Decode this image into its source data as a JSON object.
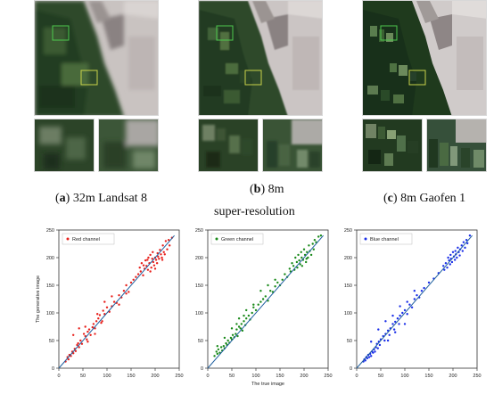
{
  "figure": {
    "panels": [
      {
        "letter": "a",
        "label": "32m Landsat 8"
      },
      {
        "letter": "b",
        "label": "8m",
        "label2": "super-resolution"
      },
      {
        "letter": "c",
        "label": "8m Gaofen 1"
      }
    ]
  },
  "chart_data": [
    {
      "type": "scatter",
      "title": "",
      "xlabel": "",
      "ylabel": "The generative image",
      "xlim": [
        0,
        250
      ],
      "ylim": [
        0,
        250
      ],
      "xticks": [
        0,
        50,
        100,
        150,
        200,
        250
      ],
      "yticks": [
        0,
        50,
        100,
        150,
        200,
        250
      ],
      "legend": {
        "label": "Red channel",
        "position": "top-left"
      },
      "color": "#e8201c",
      "reference_line": {
        "x": [
          0,
          240
        ],
        "y": [
          0,
          240
        ]
      },
      "series": [
        {
          "name": "Red channel",
          "points": [
            [
              14,
              12
            ],
            [
              18,
              20
            ],
            [
              20,
              16
            ],
            [
              22,
              24
            ],
            [
              25,
              22
            ],
            [
              28,
              30
            ],
            [
              30,
              27
            ],
            [
              33,
              35
            ],
            [
              35,
              31
            ],
            [
              38,
              42
            ],
            [
              40,
              45
            ],
            [
              42,
              38
            ],
            [
              45,
              50
            ],
            [
              48,
              44
            ],
            [
              52,
              62
            ],
            [
              55,
              58
            ],
            [
              58,
              52
            ],
            [
              60,
              66
            ],
            [
              63,
              70
            ],
            [
              66,
              60
            ],
            [
              70,
              74
            ],
            [
              72,
              80
            ],
            [
              75,
              72
            ],
            [
              78,
              85
            ],
            [
              82,
              90
            ],
            [
              85,
              96
            ],
            [
              88,
              82
            ],
            [
              92,
              104
            ],
            [
              95,
              98
            ],
            [
              100,
              110
            ],
            [
              105,
              102
            ],
            [
              110,
              112
            ],
            [
              115,
              120
            ],
            [
              120,
              118
            ],
            [
              125,
              132
            ],
            [
              130,
              128
            ],
            [
              135,
              140
            ],
            [
              140,
              150
            ],
            [
              145,
              138
            ],
            [
              150,
              155
            ],
            [
              155,
              160
            ],
            [
              160,
              165
            ],
            [
              165,
              170
            ],
            [
              170,
              175
            ],
            [
              172,
              190
            ],
            [
              175,
              168
            ],
            [
              178,
              180
            ],
            [
              180,
              195
            ],
            [
              182,
              185
            ],
            [
              185,
              178
            ],
            [
              186,
              200
            ],
            [
              188,
              190
            ],
            [
              190,
              205
            ],
            [
              192,
              182
            ],
            [
              194,
              198
            ],
            [
              195,
              210
            ],
            [
              196,
              192
            ],
            [
              198,
              186
            ],
            [
              200,
              200
            ],
            [
              202,
              196
            ],
            [
              204,
              190
            ],
            [
              205,
              208
            ],
            [
              206,
              202
            ],
            [
              208,
              198
            ],
            [
              210,
              214
            ],
            [
              212,
              206
            ],
            [
              214,
              200
            ],
            [
              215,
              196
            ],
            [
              216,
              222
            ],
            [
              218,
              210
            ],
            [
              220,
              206
            ],
            [
              222,
              230
            ],
            [
              225,
              215
            ],
            [
              228,
              232
            ],
            [
              230,
              222
            ],
            [
              235,
              236
            ],
            [
              200,
              180
            ],
            [
              190,
              175
            ],
            [
              184,
              196
            ],
            [
              176,
              186
            ],
            [
              168,
              182
            ],
            [
              30,
              60
            ],
            [
              42,
              72
            ],
            [
              55,
              75
            ],
            [
              80,
              98
            ],
            [
              95,
              120
            ],
            [
              110,
              130
            ],
            [
              125,
              115
            ],
            [
              140,
              135
            ],
            [
              60,
              48
            ],
            [
              75,
              62
            ],
            [
              90,
              85
            ]
          ]
        }
      ]
    },
    {
      "type": "scatter",
      "title": "",
      "xlabel": "The true image",
      "ylabel": "",
      "xlim": [
        0,
        250
      ],
      "ylim": [
        0,
        250
      ],
      "xticks": [
        0,
        50,
        100,
        150,
        200,
        250
      ],
      "yticks": [
        0,
        50,
        100,
        150,
        200,
        250
      ],
      "legend": {
        "label": "Green channel",
        "position": "top-left"
      },
      "color": "#1a8a1a",
      "reference_line": {
        "x": [
          0,
          240
        ],
        "y": [
          0,
          240
        ]
      },
      "series": [
        {
          "name": "Green channel",
          "points": [
            [
              14,
              22
            ],
            [
              18,
              30
            ],
            [
              20,
              26
            ],
            [
              22,
              34
            ],
            [
              25,
              28
            ],
            [
              28,
              38
            ],
            [
              30,
              32
            ],
            [
              33,
              40
            ],
            [
              35,
              36
            ],
            [
              38,
              45
            ],
            [
              40,
              42
            ],
            [
              42,
              50
            ],
            [
              45,
              46
            ],
            [
              48,
              55
            ],
            [
              50,
              52
            ],
            [
              52,
              60
            ],
            [
              55,
              56
            ],
            [
              58,
              62
            ],
            [
              60,
              70
            ],
            [
              62,
              58
            ],
            [
              65,
              75
            ],
            [
              68,
              72
            ],
            [
              70,
              80
            ],
            [
              72,
              68
            ],
            [
              75,
              85
            ],
            [
              78,
              78
            ],
            [
              80,
              90
            ],
            [
              85,
              95
            ],
            [
              88,
              88
            ],
            [
              92,
              100
            ],
            [
              95,
              110
            ],
            [
              100,
              105
            ],
            [
              105,
              115
            ],
            [
              110,
              120
            ],
            [
              115,
              125
            ],
            [
              120,
              130
            ],
            [
              125,
              122
            ],
            [
              130,
              140
            ],
            [
              135,
              138
            ],
            [
              140,
              148
            ],
            [
              145,
              155
            ],
            [
              150,
              150
            ],
            [
              155,
              160
            ],
            [
              160,
              170
            ],
            [
              165,
              165
            ],
            [
              170,
              180
            ],
            [
              172,
              175
            ],
            [
              175,
              190
            ],
            [
              178,
              185
            ],
            [
              180,
              178
            ],
            [
              182,
              200
            ],
            [
              185,
              192
            ],
            [
              186,
              182
            ],
            [
              188,
              205
            ],
            [
              190,
              195
            ],
            [
              192,
              188
            ],
            [
              194,
              210
            ],
            [
              195,
              200
            ],
            [
              196,
              185
            ],
            [
              198,
              196
            ],
            [
              200,
              215
            ],
            [
              202,
              205
            ],
            [
              204,
              192
            ],
            [
              205,
              198
            ],
            [
              206,
              210
            ],
            [
              208,
              200
            ],
            [
              210,
              222
            ],
            [
              212,
              212
            ],
            [
              215,
              205
            ],
            [
              218,
              225
            ],
            [
              220,
              215
            ],
            [
              222,
              232
            ],
            [
              225,
              228
            ],
            [
              230,
              238
            ],
            [
              235,
              240
            ],
            [
              20,
              40
            ],
            [
              35,
              55
            ],
            [
              50,
              72
            ],
            [
              65,
              90
            ],
            [
              80,
              105
            ],
            [
              95,
              115
            ],
            [
              110,
              140
            ],
            [
              125,
              150
            ],
            [
              140,
              160
            ],
            [
              60,
              80
            ],
            [
              75,
              95
            ]
          ]
        }
      ]
    },
    {
      "type": "scatter",
      "title": "",
      "xlabel": "",
      "ylabel": "",
      "xlim": [
        0,
        250
      ],
      "ylim": [
        0,
        250
      ],
      "xticks": [
        0,
        50,
        100,
        150,
        200,
        250
      ],
      "yticks": [
        0,
        50,
        100,
        150,
        200,
        250
      ],
      "legend": {
        "label": "Blue channel",
        "position": "top-left"
      },
      "color": "#1a2ee8",
      "reference_line": {
        "x": [
          0,
          240
        ],
        "y": [
          0,
          240
        ]
      },
      "series": [
        {
          "name": "Blue channel",
          "points": [
            [
              14,
              12
            ],
            [
              16,
              16
            ],
            [
              18,
              14
            ],
            [
              20,
              20
            ],
            [
              22,
              18
            ],
            [
              24,
              24
            ],
            [
              26,
              20
            ],
            [
              28,
              26
            ],
            [
              30,
              22
            ],
            [
              32,
              30
            ],
            [
              34,
              28
            ],
            [
              36,
              34
            ],
            [
              38,
              30
            ],
            [
              40,
              38
            ],
            [
              42,
              44
            ],
            [
              44,
              36
            ],
            [
              46,
              48
            ],
            [
              48,
              42
            ],
            [
              50,
              52
            ],
            [
              55,
              58
            ],
            [
              58,
              50
            ],
            [
              60,
              62
            ],
            [
              65,
              68
            ],
            [
              68,
              60
            ],
            [
              70,
              72
            ],
            [
              75,
              80
            ],
            [
              78,
              70
            ],
            [
              80,
              84
            ],
            [
              85,
              90
            ],
            [
              88,
              80
            ],
            [
              90,
              95
            ],
            [
              95,
              100
            ],
            [
              100,
              105
            ],
            [
              105,
              98
            ],
            [
              110,
              115
            ],
            [
              115,
              110
            ],
            [
              120,
              125
            ],
            [
              125,
              132
            ],
            [
              130,
              128
            ],
            [
              135,
              140
            ],
            [
              140,
              145
            ],
            [
              150,
              155
            ],
            [
              160,
              162
            ],
            [
              170,
              172
            ],
            [
              180,
              185
            ],
            [
              182,
              178
            ],
            [
              185,
              190
            ],
            [
              188,
              182
            ],
            [
              190,
              200
            ],
            [
              192,
              195
            ],
            [
              194,
              188
            ],
            [
              195,
              205
            ],
            [
              196,
              198
            ],
            [
              198,
              192
            ],
            [
              200,
              210
            ],
            [
              202,
              202
            ],
            [
              204,
              196
            ],
            [
              205,
              212
            ],
            [
              206,
              206
            ],
            [
              208,
              200
            ],
            [
              210,
              218
            ],
            [
              212,
              210
            ],
            [
              214,
              204
            ],
            [
              215,
              215
            ],
            [
              218,
              222
            ],
            [
              220,
              212
            ],
            [
              222,
              228
            ],
            [
              225,
              218
            ],
            [
              228,
              232
            ],
            [
              230,
              226
            ],
            [
              235,
              240
            ],
            [
              30,
              48
            ],
            [
              45,
              70
            ],
            [
              60,
              85
            ],
            [
              75,
              95
            ],
            [
              90,
              112
            ],
            [
              105,
              120
            ],
            [
              120,
              140
            ],
            [
              100,
              80
            ],
            [
              80,
              65
            ],
            [
              65,
              50
            ]
          ]
        }
      ]
    }
  ]
}
